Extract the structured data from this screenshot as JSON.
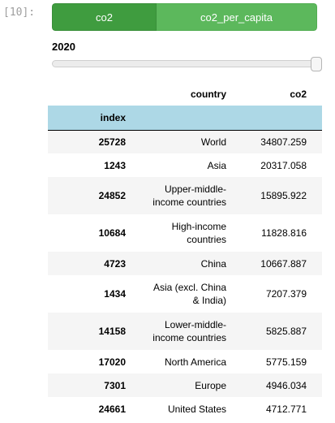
{
  "cell": {
    "prompt": "[10]:"
  },
  "toggle": {
    "options": [
      "co2",
      "co2_per_capita"
    ],
    "selected": "co2"
  },
  "slider": {
    "value": "2020"
  },
  "table": {
    "columns": [
      "country",
      "co2"
    ],
    "index_name": "index",
    "rows": [
      {
        "index": "25728",
        "country": "World",
        "co2": "34807.259"
      },
      {
        "index": "1243",
        "country": "Asia",
        "co2": "20317.058"
      },
      {
        "index": "24852",
        "country": "Upper-middle-income countries",
        "co2": "15895.922"
      },
      {
        "index": "10684",
        "country": "High-income countries",
        "co2": "11828.816"
      },
      {
        "index": "4723",
        "country": "China",
        "co2": "10667.887"
      },
      {
        "index": "1434",
        "country": "Asia (excl. China & India)",
        "co2": "7207.379"
      },
      {
        "index": "14158",
        "country": "Lower-middle-income countries",
        "co2": "5825.887"
      },
      {
        "index": "17020",
        "country": "North America",
        "co2": "5775.159"
      },
      {
        "index": "7301",
        "country": "Europe",
        "co2": "4946.034"
      },
      {
        "index": "24661",
        "country": "United States",
        "co2": "4712.771"
      }
    ]
  },
  "colors": {
    "toggle_selected": "#3f9c3f",
    "toggle_unselected": "#5cb85c",
    "index_header_bg": "#add8e6",
    "stripe": "#f5f5f5"
  }
}
